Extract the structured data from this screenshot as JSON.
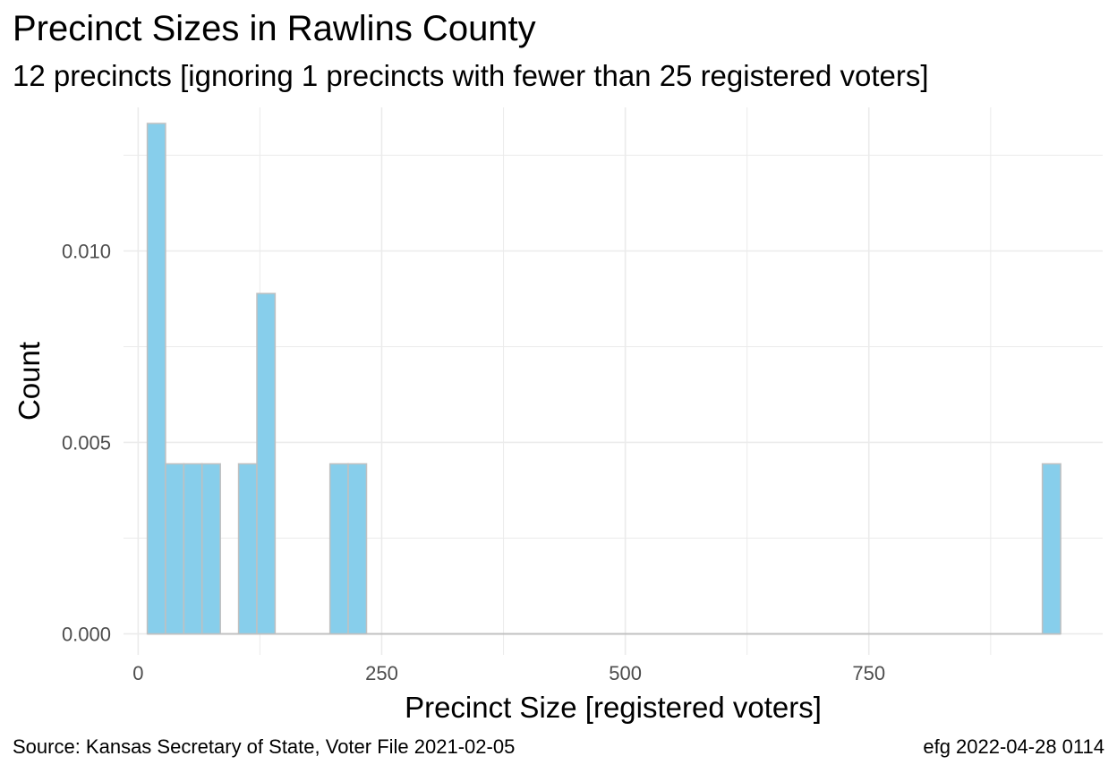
{
  "chart_data": {
    "type": "bar",
    "title": "Precinct Sizes in Rawlins County",
    "subtitle": "12 precincts [ignoring 1 precincts with fewer than 25 registered voters]",
    "xlabel": "Precinct Size [registered voters]",
    "ylabel": "Count",
    "xlim": [
      -15,
      990
    ],
    "ylim": [
      -0.00055,
      0.01375
    ],
    "x_ticks": [
      0,
      250,
      500,
      750
    ],
    "x_tick_labels": [
      "0",
      "250",
      "500",
      "750"
    ],
    "y_ticks": [
      0.0,
      0.005,
      0.01
    ],
    "y_tick_labels": [
      "0.000",
      "0.005",
      "0.010"
    ],
    "bin_width": 18.75,
    "bins": [
      {
        "x0": 9.4,
        "x1": 28.1,
        "value": 0.01333
      },
      {
        "x0": 28.1,
        "x1": 46.9,
        "value": 0.00444
      },
      {
        "x0": 46.9,
        "x1": 65.6,
        "value": 0.00444
      },
      {
        "x0": 65.6,
        "x1": 84.4,
        "value": 0.00444
      },
      {
        "x0": 103.1,
        "x1": 121.9,
        "value": 0.00444
      },
      {
        "x0": 121.9,
        "x1": 140.6,
        "value": 0.00889
      },
      {
        "x0": 196.9,
        "x1": 215.6,
        "value": 0.00444
      },
      {
        "x0": 215.6,
        "x1": 234.4,
        "value": 0.00444
      },
      {
        "x0": 928.1,
        "x1": 946.9,
        "value": 0.00444
      }
    ],
    "baseline_range": [
      9.4,
      946.9
    ],
    "grid": true,
    "bar_fill": "#87ceeb",
    "bar_stroke": "#c0c0c0",
    "grid_color": "#ebebeb"
  },
  "caption": {
    "source": "Source:  Kansas Secretary of State, Voter File  2021-02-05",
    "credit": "efg 2022-04-28 0114"
  }
}
